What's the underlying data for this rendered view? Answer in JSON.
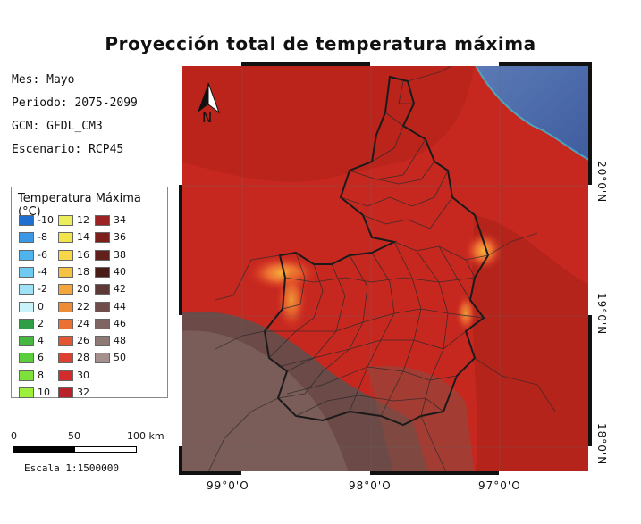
{
  "title": "Proyección total de temperatura máxima",
  "meta": {
    "mes": "Mes: Mayo",
    "periodo": "Periodo: 2075-2099",
    "gcm": "GCM: GFDL_CM3",
    "escenario": "Escenario: RCP45"
  },
  "legend": {
    "title": "Temperatura Máxima (°C)",
    "items": [
      {
        "label": "-10",
        "color": "#1f6fd1"
      },
      {
        "label": "-8",
        "color": "#3a98e6"
      },
      {
        "label": "-6",
        "color": "#4fb3ee"
      },
      {
        "label": "-4",
        "color": "#6fcaf2"
      },
      {
        "label": "-2",
        "color": "#9fe2f6"
      },
      {
        "label": "0",
        "color": "#c9f3f8"
      },
      {
        "label": "2",
        "color": "#2f9e44"
      },
      {
        "label": "4",
        "color": "#46b83f"
      },
      {
        "label": "6",
        "color": "#5ccd3b"
      },
      {
        "label": "8",
        "color": "#7ee03a"
      },
      {
        "label": "10",
        "color": "#9cf03a"
      },
      {
        "label": "12",
        "color": "#e9ee5a"
      },
      {
        "label": "14",
        "color": "#f2e54c"
      },
      {
        "label": "16",
        "color": "#f7d648"
      },
      {
        "label": "18",
        "color": "#f6c244"
      },
      {
        "label": "20",
        "color": "#f2a63c"
      },
      {
        "label": "22",
        "color": "#ef8c36"
      },
      {
        "label": "24",
        "color": "#ea7034"
      },
      {
        "label": "26",
        "color": "#e45532"
      },
      {
        "label": "28",
        "color": "#dd3f30"
      },
      {
        "label": "30",
        "color": "#d32c2c"
      },
      {
        "label": "32",
        "color": "#b82228"
      },
      {
        "label": "34",
        "color": "#9c2223"
      },
      {
        "label": "36",
        "color": "#7d1f1d"
      },
      {
        "label": "38",
        "color": "#62201c"
      },
      {
        "label": "40",
        "color": "#4a1c18"
      },
      {
        "label": "42",
        "color": "#5d3a37"
      },
      {
        "label": "44",
        "color": "#6f4e4b"
      },
      {
        "label": "46",
        "color": "#7f6462"
      },
      {
        "label": "48",
        "color": "#8f7977"
      },
      {
        "label": "50",
        "color": "#a5908e"
      }
    ]
  },
  "scale_bar": {
    "labels": [
      "0",
      "50",
      "100 km"
    ],
    "text": "Escala 1:1500000"
  },
  "map": {
    "north_label": "N",
    "lon_labels": [
      "99°0'O",
      "98°0'O",
      "97°0'O"
    ],
    "lat_labels": [
      "20°0'N",
      "19°0'N",
      "18°0'N"
    ],
    "colors": {
      "hot_red": "#d0281e",
      "dark_red": "#8e1c18",
      "sea": "#4f6fae",
      "cool_gray": "#6b4a47",
      "border": "#222222"
    }
  }
}
